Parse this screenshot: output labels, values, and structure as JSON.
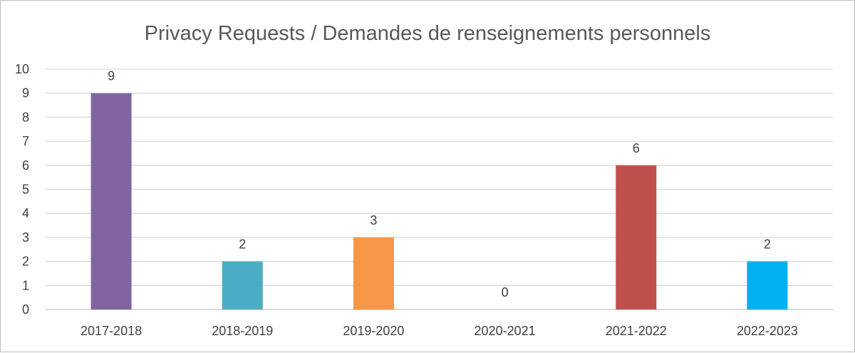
{
  "chart_data": {
    "type": "bar",
    "title": "Privacy Requests / Demandes de renseignements personnels",
    "xlabel": "",
    "ylabel": "",
    "categories": [
      "2017-2018",
      "2018-2019",
      "2019-2020",
      "2020-2021",
      "2021-2022",
      "2022-2023"
    ],
    "values": [
      9,
      2,
      3,
      0,
      6,
      2
    ],
    "bar_colors": [
      "#8064A2",
      "#4BACC6",
      "#F79646",
      "#4F81BD",
      "#C0504D",
      "#00B0F0"
    ],
    "ylim": [
      0,
      10
    ],
    "yticks": [
      "0",
      "1",
      "2",
      "3",
      "4",
      "5",
      "6",
      "7",
      "8",
      "9",
      "10"
    ],
    "data_labels": [
      "9",
      "2",
      "3",
      "0",
      "6",
      "2"
    ],
    "grid": true,
    "legend": "none"
  }
}
